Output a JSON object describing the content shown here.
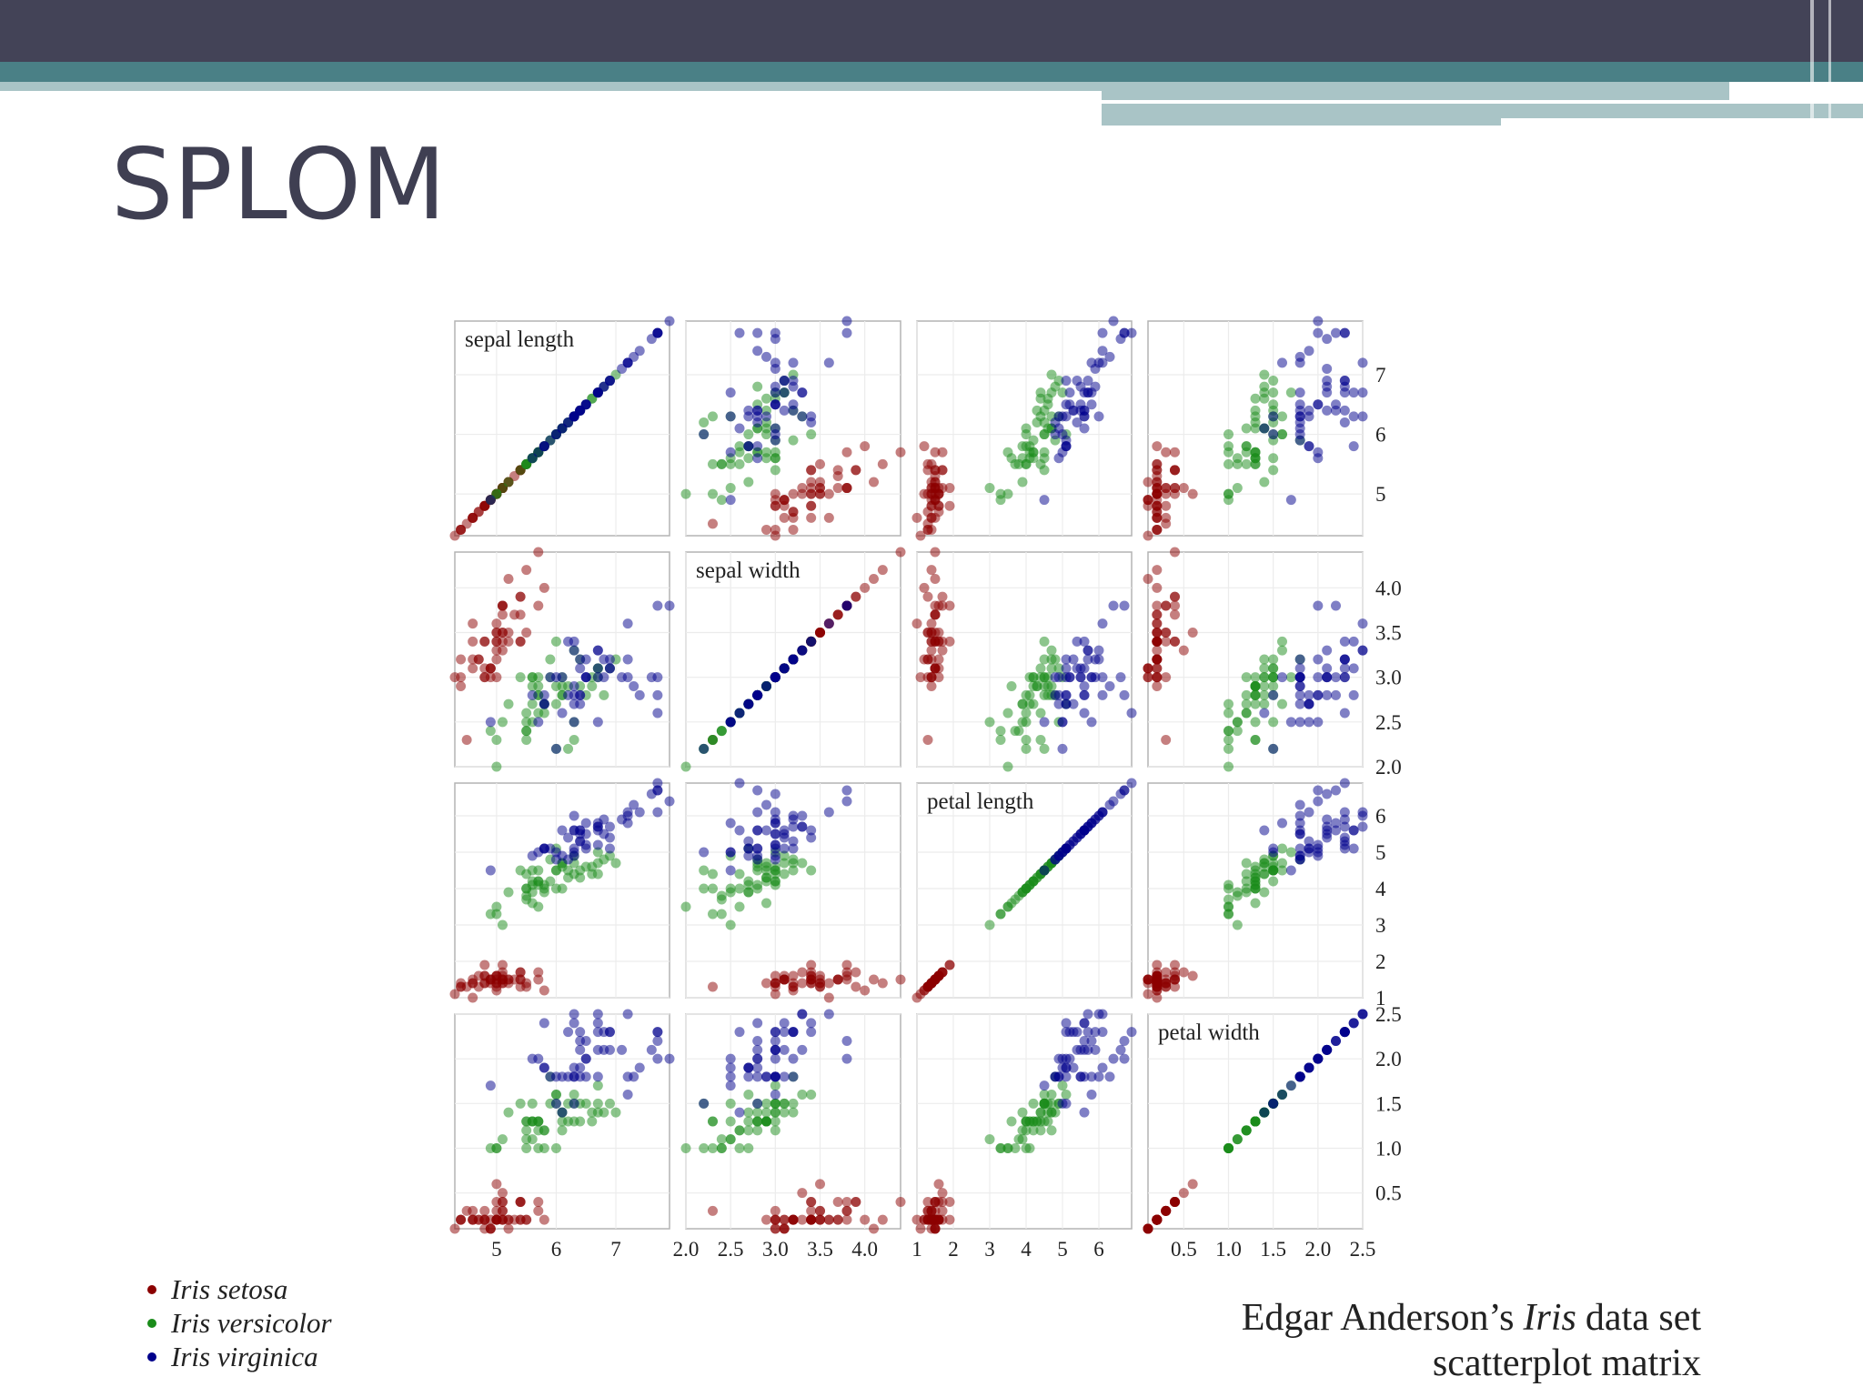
{
  "title": "SPLOM",
  "chart_data": {
    "type": "splom",
    "variables": [
      "sepal length",
      "sepal width",
      "petal length",
      "petal width"
    ],
    "lims": [
      [
        4.3,
        7.9
      ],
      [
        2.0,
        4.4
      ],
      [
        1,
        6.9
      ],
      [
        0.1,
        2.5
      ]
    ],
    "ticks": [
      [
        5,
        6,
        7
      ],
      [
        {
          "value": 2,
          "label": "2.0"
        },
        2.5,
        {
          "value": 3,
          "label": "3.0"
        },
        3.5,
        {
          "value": 4,
          "label": "4.0"
        }
      ],
      [
        1,
        2,
        3,
        4,
        5,
        6
      ],
      [
        0.5,
        {
          "value": 1,
          "label": "1.0"
        },
        1.5,
        {
          "value": 2,
          "label": "2.0"
        },
        2.5
      ]
    ],
    "grid": true,
    "legend": "bottom-left",
    "caption": {
      "before": "Edgar Anderson’s",
      "italic": "Iris",
      "after": "data set",
      "line2": "scatterplot matrix"
    },
    "series": [
      {
        "name": "Iris setosa",
        "color": "#8b0000",
        "values": [
          [
            5.1,
            3.5,
            1.4,
            0.2
          ],
          [
            4.9,
            3.0,
            1.4,
            0.2
          ],
          [
            4.7,
            3.2,
            1.3,
            0.2
          ],
          [
            4.6,
            3.1,
            1.5,
            0.2
          ],
          [
            5.0,
            3.6,
            1.4,
            0.2
          ],
          [
            5.4,
            3.9,
            1.7,
            0.4
          ],
          [
            4.6,
            3.4,
            1.4,
            0.3
          ],
          [
            5.0,
            3.4,
            1.5,
            0.2
          ],
          [
            4.4,
            2.9,
            1.4,
            0.2
          ],
          [
            4.9,
            3.1,
            1.5,
            0.1
          ],
          [
            5.4,
            3.7,
            1.5,
            0.2
          ],
          [
            4.8,
            3.4,
            1.6,
            0.2
          ],
          [
            4.8,
            3.0,
            1.4,
            0.1
          ],
          [
            4.3,
            3.0,
            1.1,
            0.1
          ],
          [
            5.8,
            4.0,
            1.2,
            0.2
          ],
          [
            5.7,
            4.4,
            1.5,
            0.4
          ],
          [
            5.4,
            3.9,
            1.3,
            0.4
          ],
          [
            5.1,
            3.5,
            1.4,
            0.3
          ],
          [
            5.7,
            3.8,
            1.7,
            0.3
          ],
          [
            5.1,
            3.8,
            1.5,
            0.3
          ],
          [
            5.4,
            3.4,
            1.7,
            0.2
          ],
          [
            5.1,
            3.7,
            1.5,
            0.4
          ],
          [
            4.6,
            3.6,
            1.0,
            0.2
          ],
          [
            5.1,
            3.3,
            1.7,
            0.5
          ],
          [
            4.8,
            3.4,
            1.9,
            0.2
          ],
          [
            5.0,
            3.0,
            1.6,
            0.2
          ],
          [
            5.0,
            3.4,
            1.6,
            0.4
          ],
          [
            5.2,
            3.5,
            1.5,
            0.2
          ],
          [
            5.2,
            3.4,
            1.4,
            0.2
          ],
          [
            4.7,
            3.2,
            1.6,
            0.2
          ],
          [
            4.8,
            3.1,
            1.6,
            0.2
          ],
          [
            5.4,
            3.4,
            1.5,
            0.4
          ],
          [
            5.2,
            4.1,
            1.5,
            0.1
          ],
          [
            5.5,
            4.2,
            1.4,
            0.2
          ],
          [
            4.9,
            3.1,
            1.5,
            0.1
          ],
          [
            5.0,
            3.2,
            1.2,
            0.2
          ],
          [
            5.5,
            3.5,
            1.3,
            0.2
          ],
          [
            4.9,
            3.1,
            1.5,
            0.1
          ],
          [
            4.4,
            3.0,
            1.3,
            0.2
          ],
          [
            5.1,
            3.4,
            1.5,
            0.2
          ],
          [
            5.0,
            3.5,
            1.3,
            0.3
          ],
          [
            4.5,
            2.3,
            1.3,
            0.3
          ],
          [
            4.4,
            3.2,
            1.3,
            0.2
          ],
          [
            5.0,
            3.5,
            1.6,
            0.6
          ],
          [
            5.1,
            3.8,
            1.9,
            0.4
          ],
          [
            4.8,
            3.0,
            1.4,
            0.3
          ],
          [
            5.1,
            3.8,
            1.6,
            0.2
          ],
          [
            4.6,
            3.2,
            1.4,
            0.2
          ],
          [
            5.3,
            3.7,
            1.5,
            0.2
          ],
          [
            5.0,
            3.3,
            1.4,
            0.2
          ]
        ]
      },
      {
        "name": "Iris versicolor",
        "color": "#1a8c1a",
        "values": [
          [
            7.0,
            3.2,
            4.7,
            1.4
          ],
          [
            6.4,
            3.2,
            4.5,
            1.5
          ],
          [
            6.9,
            3.1,
            4.9,
            1.5
          ],
          [
            5.5,
            2.3,
            4.0,
            1.3
          ],
          [
            6.5,
            2.8,
            4.6,
            1.5
          ],
          [
            5.7,
            2.8,
            4.5,
            1.3
          ],
          [
            6.3,
            3.3,
            4.7,
            1.6
          ],
          [
            4.9,
            2.4,
            3.3,
            1.0
          ],
          [
            6.6,
            2.9,
            4.6,
            1.3
          ],
          [
            5.2,
            2.7,
            3.9,
            1.4
          ],
          [
            5.0,
            2.0,
            3.5,
            1.0
          ],
          [
            5.9,
            3.0,
            4.2,
            1.5
          ],
          [
            6.0,
            2.2,
            4.0,
            1.0
          ],
          [
            6.1,
            2.9,
            4.7,
            1.4
          ],
          [
            5.6,
            2.9,
            3.6,
            1.3
          ],
          [
            6.7,
            3.1,
            4.4,
            1.4
          ],
          [
            5.6,
            3.0,
            4.5,
            1.5
          ],
          [
            5.8,
            2.7,
            4.1,
            1.0
          ],
          [
            6.2,
            2.2,
            4.5,
            1.5
          ],
          [
            5.6,
            2.5,
            3.9,
            1.1
          ],
          [
            5.9,
            3.2,
            4.8,
            1.8
          ],
          [
            6.1,
            2.8,
            4.0,
            1.3
          ],
          [
            6.3,
            2.5,
            4.9,
            1.5
          ],
          [
            6.1,
            2.8,
            4.7,
            1.2
          ],
          [
            6.4,
            2.9,
            4.3,
            1.3
          ],
          [
            6.6,
            3.0,
            4.4,
            1.4
          ],
          [
            6.8,
            2.8,
            4.8,
            1.4
          ],
          [
            6.7,
            3.0,
            5.0,
            1.7
          ],
          [
            6.0,
            2.9,
            4.5,
            1.5
          ],
          [
            5.7,
            2.6,
            3.5,
            1.0
          ],
          [
            5.5,
            2.4,
            3.8,
            1.1
          ],
          [
            5.5,
            2.4,
            3.7,
            1.0
          ],
          [
            5.8,
            2.7,
            3.9,
            1.2
          ],
          [
            6.0,
            2.7,
            5.1,
            1.6
          ],
          [
            5.4,
            3.0,
            4.5,
            1.5
          ],
          [
            6.0,
            3.4,
            4.5,
            1.6
          ],
          [
            6.7,
            3.1,
            4.7,
            1.5
          ],
          [
            6.3,
            2.3,
            4.4,
            1.3
          ],
          [
            5.6,
            3.0,
            4.1,
            1.3
          ],
          [
            5.5,
            2.5,
            4.0,
            1.3
          ],
          [
            5.5,
            2.6,
            4.4,
            1.2
          ],
          [
            6.1,
            3.0,
            4.6,
            1.4
          ],
          [
            5.8,
            2.6,
            4.0,
            1.2
          ],
          [
            5.0,
            2.3,
            3.3,
            1.0
          ],
          [
            5.6,
            2.7,
            4.2,
            1.3
          ],
          [
            5.7,
            3.0,
            4.2,
            1.2
          ],
          [
            5.7,
            2.9,
            4.2,
            1.3
          ],
          [
            6.2,
            2.9,
            4.3,
            1.3
          ],
          [
            5.1,
            2.5,
            3.0,
            1.1
          ],
          [
            5.7,
            2.8,
            4.1,
            1.3
          ]
        ]
      },
      {
        "name": "Iris virginica",
        "color": "#00008b",
        "values": [
          [
            6.3,
            3.3,
            6.0,
            2.5
          ],
          [
            5.8,
            2.7,
            5.1,
            1.9
          ],
          [
            7.1,
            3.0,
            5.9,
            2.1
          ],
          [
            6.3,
            2.9,
            5.6,
            1.8
          ],
          [
            6.5,
            3.0,
            5.8,
            2.2
          ],
          [
            7.6,
            3.0,
            6.6,
            2.1
          ],
          [
            4.9,
            2.5,
            4.5,
            1.7
          ],
          [
            7.3,
            2.9,
            6.3,
            1.8
          ],
          [
            6.7,
            2.5,
            5.8,
            1.8
          ],
          [
            7.2,
            3.6,
            6.1,
            2.5
          ],
          [
            6.5,
            3.2,
            5.1,
            2.0
          ],
          [
            6.4,
            2.7,
            5.3,
            1.9
          ],
          [
            6.8,
            3.0,
            5.5,
            2.1
          ],
          [
            5.7,
            2.5,
            5.0,
            2.0
          ],
          [
            5.8,
            2.8,
            5.1,
            2.4
          ],
          [
            6.4,
            3.2,
            5.3,
            2.3
          ],
          [
            6.5,
            3.0,
            5.5,
            1.8
          ],
          [
            7.7,
            3.8,
            6.7,
            2.2
          ],
          [
            7.7,
            2.6,
            6.9,
            2.3
          ],
          [
            6.0,
            2.2,
            5.0,
            1.5
          ],
          [
            6.9,
            3.2,
            5.7,
            2.3
          ],
          [
            5.6,
            2.8,
            4.9,
            2.0
          ],
          [
            7.7,
            2.8,
            6.7,
            2.0
          ],
          [
            6.3,
            2.7,
            4.9,
            1.8
          ],
          [
            6.7,
            3.3,
            5.7,
            2.1
          ],
          [
            7.2,
            3.2,
            6.0,
            1.8
          ],
          [
            6.2,
            2.8,
            4.8,
            1.8
          ],
          [
            6.1,
            3.0,
            4.9,
            1.8
          ],
          [
            6.4,
            2.8,
            5.6,
            2.1
          ],
          [
            7.2,
            3.0,
            5.8,
            1.6
          ],
          [
            7.4,
            2.8,
            6.1,
            1.9
          ],
          [
            7.9,
            3.8,
            6.4,
            2.0
          ],
          [
            6.4,
            2.8,
            5.6,
            2.2
          ],
          [
            6.3,
            2.8,
            5.1,
            1.5
          ],
          [
            6.1,
            2.6,
            5.6,
            1.4
          ],
          [
            7.7,
            3.0,
            6.1,
            2.3
          ],
          [
            6.3,
            3.4,
            5.6,
            2.4
          ],
          [
            6.4,
            3.1,
            5.5,
            1.8
          ],
          [
            6.0,
            3.0,
            4.8,
            1.8
          ],
          [
            6.9,
            3.1,
            5.4,
            2.1
          ],
          [
            6.7,
            3.1,
            5.6,
            2.4
          ],
          [
            6.9,
            3.1,
            5.1,
            2.3
          ],
          [
            5.8,
            2.7,
            5.1,
            1.9
          ],
          [
            6.8,
            3.2,
            5.9,
            2.3
          ],
          [
            6.7,
            3.3,
            5.7,
            2.5
          ],
          [
            6.7,
            3.0,
            5.2,
            2.3
          ],
          [
            6.3,
            2.5,
            5.0,
            1.9
          ],
          [
            6.5,
            3.0,
            5.2,
            2.0
          ],
          [
            6.2,
            3.4,
            5.4,
            2.3
          ],
          [
            5.9,
            3.0,
            5.1,
            1.8
          ]
        ]
      }
    ]
  }
}
